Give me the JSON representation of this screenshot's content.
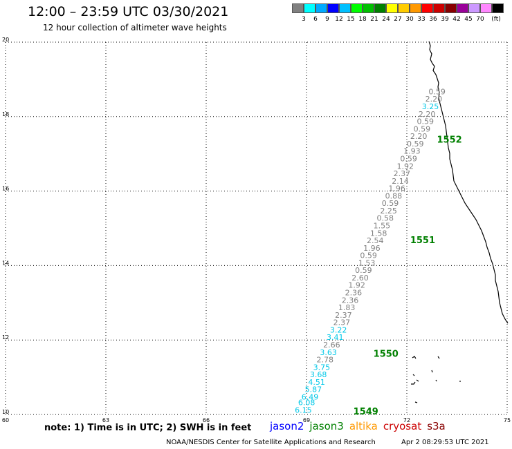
{
  "header": {
    "title": "12:00 – 23:59 UTC 03/30/2021",
    "subtitle": "12 hour collection of altimeter wave heights"
  },
  "color_legend": {
    "unit": "(ft)",
    "colors": [
      "#808080",
      "#00ffff",
      "#00aaff",
      "#0000ff",
      "#00c0ff",
      "#00ff00",
      "#00c000",
      "#008000",
      "#ffff00",
      "#ffcc00",
      "#ff9900",
      "#ff0000",
      "#cc0000",
      "#880000",
      "#990099",
      "#cc99ff",
      "#ff88ff",
      "#000000"
    ],
    "labels": [
      "3",
      "6",
      "9",
      "12",
      "15",
      "18",
      "21",
      "24",
      "27",
      "30",
      "33",
      "36",
      "39",
      "42",
      "45",
      "70"
    ]
  },
  "chart_data": {
    "type": "scatter",
    "title": "12:00 – 23:59 UTC 03/30/2021",
    "xlim": [
      60,
      75
    ],
    "ylim": [
      10,
      20
    ],
    "x_ticks": [
      "60",
      "63",
      "66",
      "69",
      "72",
      "75"
    ],
    "y_ticks": [
      "10",
      "12",
      "14",
      "16",
      "18",
      "20"
    ],
    "grid": true,
    "pass_labels": [
      {
        "text": "1552",
        "lon": 72.9,
        "lat": 17.3,
        "color": "#008000"
      },
      {
        "text": "1551",
        "lon": 72.1,
        "lat": 14.6,
        "color": "#008000"
      },
      {
        "text": "1550",
        "lon": 71.0,
        "lat": 11.55,
        "color": "#008000"
      },
      {
        "text": "1549",
        "lon": 70.4,
        "lat": 10.0,
        "color": "#008000"
      }
    ],
    "series": [
      {
        "name": "jason3",
        "points": [
          {
            "lon": 72.65,
            "lat": 18.6,
            "swh": "0.59",
            "color": "#808080"
          },
          {
            "lon": 72.55,
            "lat": 18.4,
            "swh": "2.20",
            "color": "#808080"
          },
          {
            "lon": 72.45,
            "lat": 18.2,
            "swh": "3.25",
            "color": "#00c8e8"
          },
          {
            "lon": 72.35,
            "lat": 18.0,
            "swh": "2.20",
            "color": "#808080"
          },
          {
            "lon": 72.3,
            "lat": 17.8,
            "swh": "0.59",
            "color": "#808080"
          },
          {
            "lon": 72.2,
            "lat": 17.6,
            "swh": "0.59",
            "color": "#808080"
          },
          {
            "lon": 72.1,
            "lat": 17.4,
            "swh": "2.20",
            "color": "#808080"
          },
          {
            "lon": 72.0,
            "lat": 17.2,
            "swh": "0.59",
            "color": "#808080"
          },
          {
            "lon": 71.9,
            "lat": 17.0,
            "swh": "1.93",
            "color": "#808080"
          },
          {
            "lon": 71.8,
            "lat": 16.8,
            "swh": "0.59",
            "color": "#808080"
          },
          {
            "lon": 71.7,
            "lat": 16.6,
            "swh": "1.92",
            "color": "#808080"
          },
          {
            "lon": 71.6,
            "lat": 16.4,
            "swh": "2.37",
            "color": "#808080"
          },
          {
            "lon": 71.55,
            "lat": 16.2,
            "swh": "2.14",
            "color": "#808080"
          },
          {
            "lon": 71.45,
            "lat": 16.0,
            "swh": "1.96",
            "color": "#808080"
          },
          {
            "lon": 71.35,
            "lat": 15.8,
            "swh": "0.88",
            "color": "#808080"
          },
          {
            "lon": 71.25,
            "lat": 15.6,
            "swh": "0.59",
            "color": "#808080"
          },
          {
            "lon": 71.2,
            "lat": 15.4,
            "swh": "2.25",
            "color": "#808080"
          },
          {
            "lon": 71.1,
            "lat": 15.2,
            "swh": "0.58",
            "color": "#808080"
          },
          {
            "lon": 71.0,
            "lat": 15.0,
            "swh": "1.55",
            "color": "#808080"
          },
          {
            "lon": 70.9,
            "lat": 14.8,
            "swh": "1.58",
            "color": "#808080"
          },
          {
            "lon": 70.8,
            "lat": 14.6,
            "swh": "2.54",
            "color": "#808080"
          },
          {
            "lon": 70.7,
            "lat": 14.4,
            "swh": "1.96",
            "color": "#808080"
          },
          {
            "lon": 70.6,
            "lat": 14.2,
            "swh": "0.59",
            "color": "#808080"
          },
          {
            "lon": 70.55,
            "lat": 14.0,
            "swh": "1.53",
            "color": "#808080"
          },
          {
            "lon": 70.45,
            "lat": 13.8,
            "swh": "0.59",
            "color": "#808080"
          },
          {
            "lon": 70.35,
            "lat": 13.6,
            "swh": "2.60",
            "color": "#808080"
          },
          {
            "lon": 70.25,
            "lat": 13.4,
            "swh": "1.92",
            "color": "#808080"
          },
          {
            "lon": 70.15,
            "lat": 13.2,
            "swh": "2.36",
            "color": "#808080"
          },
          {
            "lon": 70.05,
            "lat": 13.0,
            "swh": "2.36",
            "color": "#808080"
          },
          {
            "lon": 69.95,
            "lat": 12.8,
            "swh": "1.83",
            "color": "#808080"
          },
          {
            "lon": 69.85,
            "lat": 12.6,
            "swh": "2.37",
            "color": "#808080"
          },
          {
            "lon": 69.8,
            "lat": 12.4,
            "swh": "2.37",
            "color": "#808080"
          },
          {
            "lon": 69.7,
            "lat": 12.2,
            "swh": "3.22",
            "color": "#00c8e8"
          },
          {
            "lon": 69.6,
            "lat": 12.0,
            "swh": "3.41",
            "color": "#00c8e8"
          },
          {
            "lon": 69.5,
            "lat": 11.8,
            "swh": "2.66",
            "color": "#808080"
          },
          {
            "lon": 69.4,
            "lat": 11.6,
            "swh": "3.63",
            "color": "#00c8e8"
          },
          {
            "lon": 69.3,
            "lat": 11.4,
            "swh": "2.78",
            "color": "#808080"
          },
          {
            "lon": 69.2,
            "lat": 11.2,
            "swh": "3.75",
            "color": "#00c8e8"
          },
          {
            "lon": 69.1,
            "lat": 11.0,
            "swh": "3.68",
            "color": "#00c8e8"
          },
          {
            "lon": 69.05,
            "lat": 10.8,
            "swh": "4.51",
            "color": "#00c8e8"
          },
          {
            "lon": 68.95,
            "lat": 10.6,
            "swh": "5.87",
            "color": "#00c8e8"
          },
          {
            "lon": 68.85,
            "lat": 10.4,
            "swh": "6.49",
            "color": "#00c8e8"
          },
          {
            "lon": 68.75,
            "lat": 10.25,
            "swh": "6.08",
            "color": "#00c8e8"
          },
          {
            "lon": 68.65,
            "lat": 10.05,
            "swh": "6.15",
            "color": "#00c8e8"
          }
        ]
      }
    ]
  },
  "footer": {
    "note": "note:  1) Time is in UTC;  2) SWH is in feet",
    "satellites": [
      {
        "name": "jason2",
        "color": "#0000ff"
      },
      {
        "name": "jason3",
        "color": "#008000"
      },
      {
        "name": "altika",
        "color": "#ff9900"
      },
      {
        "name": "cryosat",
        "color": "#cc0000"
      },
      {
        "name": "s3a",
        "color": "#880000"
      }
    ],
    "credit": "NOAA/NESDIS Center for Satellite Applications and Research",
    "timestamp": "Apr  2 08:29:53 UTC 2021"
  }
}
